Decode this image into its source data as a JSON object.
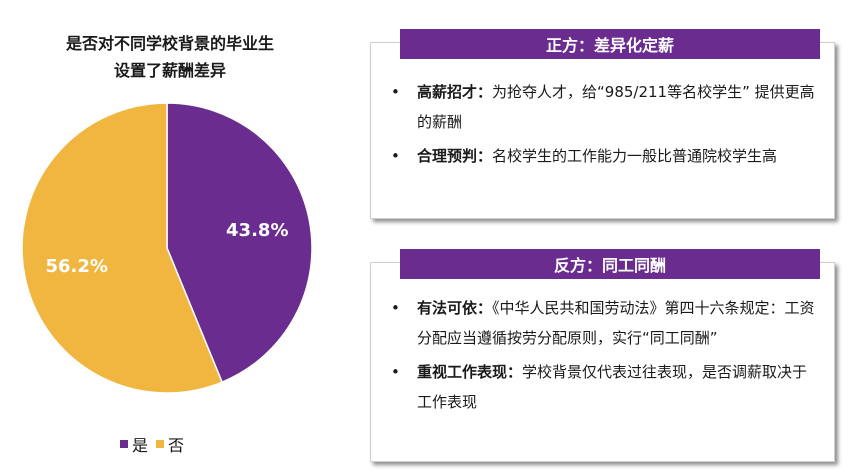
{
  "chart_data": {
    "type": "pie",
    "title": "是否对不同学校背景的毕业生设置了薪酬差异",
    "title_lines": [
      "是否对不同学校背景的毕业生",
      "设置了薪酬差异"
    ],
    "slices": [
      {
        "label": "是",
        "value": 43.8,
        "display": "43.8%",
        "color": "#6a2c8e"
      },
      {
        "label": "否",
        "value": 56.2,
        "display": "56.2%",
        "color": "#f0b63f"
      }
    ],
    "legend": {
      "position": "bottom",
      "items": [
        "是",
        "否"
      ]
    }
  },
  "cards": [
    {
      "header": "正方：差异化定薪",
      "items": [
        {
          "key": "高薪招才：",
          "text": "为抢夺人才，给“985/211等名校学生” 提供更高的薪酬"
        },
        {
          "key": "合理预判：",
          "text": "名校学生的工作能力一般比普通院校学生高"
        }
      ]
    },
    {
      "header": "反方：同工同酬",
      "items": [
        {
          "key": "有法可依：",
          "text": "《中华人民共和国劳动法》第四十六条规定：工资分配应当遵循按劳分配原则，实行“同工同酬”"
        },
        {
          "key": "重视工作表现：",
          "text": "学校背景仅代表过往表现，是否调薪取决于工作表现"
        }
      ]
    }
  ],
  "colors": {
    "accent": "#6a2c8e",
    "secondary": "#f0b63f"
  }
}
